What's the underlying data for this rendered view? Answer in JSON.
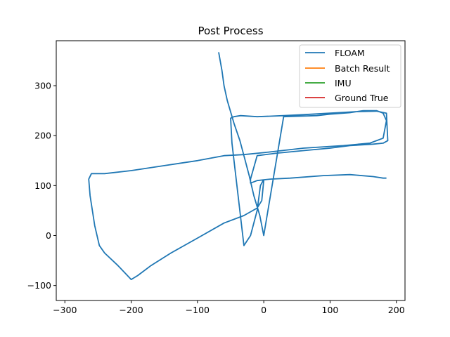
{
  "chart_data": {
    "type": "line",
    "title": "Post Process",
    "xlabel": "",
    "ylabel": "",
    "xlim": [
      -313,
      213
    ],
    "ylim": [
      -130,
      390
    ],
    "xticks": [
      -300,
      -200,
      -100,
      0,
      100,
      200
    ],
    "yticks": [
      -100,
      0,
      100,
      200,
      300
    ],
    "xtick_labels": [
      "−300",
      "−200",
      "−100",
      "0",
      "100",
      "200"
    ],
    "ytick_labels": [
      "−100",
      "0",
      "100",
      "200",
      "300"
    ],
    "legend_position": "top-right",
    "series": [
      {
        "name": "FLOAM",
        "color": "#1f77b4",
        "x": [
          -68,
          -63,
          -60,
          -55,
          -45,
          -36,
          -30,
          -22,
          -15,
          -6,
          0,
          30,
          80,
          100,
          130,
          150,
          170,
          180,
          185,
          180,
          160,
          120,
          60,
          0,
          -30,
          -60,
          -100,
          -150,
          -200,
          -240,
          -260,
          -264,
          -262,
          -255,
          -248,
          -240,
          -220,
          -200,
          -190,
          -170,
          -140,
          -100,
          -60,
          -30,
          -10,
          -3,
          0,
          -1,
          -5,
          -10,
          -20,
          -30,
          -48,
          -50,
          -45,
          -35,
          -10,
          30,
          60,
          100,
          140,
          170,
          185,
          187,
          180,
          165,
          130,
          100,
          60,
          20,
          -10,
          -20,
          -20,
          -10,
          10,
          40,
          90,
          130,
          165,
          180,
          185
        ],
        "y": [
          367,
          330,
          300,
          270,
          225,
          190,
          160,
          120,
          80,
          40,
          0,
          238,
          240,
          243,
          246,
          250,
          250,
          245,
          230,
          195,
          185,
          180,
          175,
          166,
          162,
          160,
          150,
          140,
          130,
          124,
          124,
          113,
          80,
          20,
          -20,
          -35,
          -60,
          -88,
          -80,
          -60,
          -35,
          -5,
          25,
          40,
          55,
          70,
          110,
          110,
          100,
          50,
          0,
          -20,
          185,
          235,
          238,
          240,
          238,
          240,
          242,
          245,
          248,
          249,
          245,
          190,
          185,
          183,
          180,
          175,
          170,
          165,
          160,
          113,
          105,
          110,
          113,
          115,
          120,
          122,
          118,
          115,
          115
        ]
      },
      {
        "name": "Batch Result",
        "color": "#ff7f0e",
        "x": [],
        "y": []
      },
      {
        "name": "IMU",
        "color": "#2ca02c",
        "x": [],
        "y": []
      },
      {
        "name": "Ground True",
        "color": "#d62728",
        "x": [],
        "y": []
      }
    ]
  }
}
